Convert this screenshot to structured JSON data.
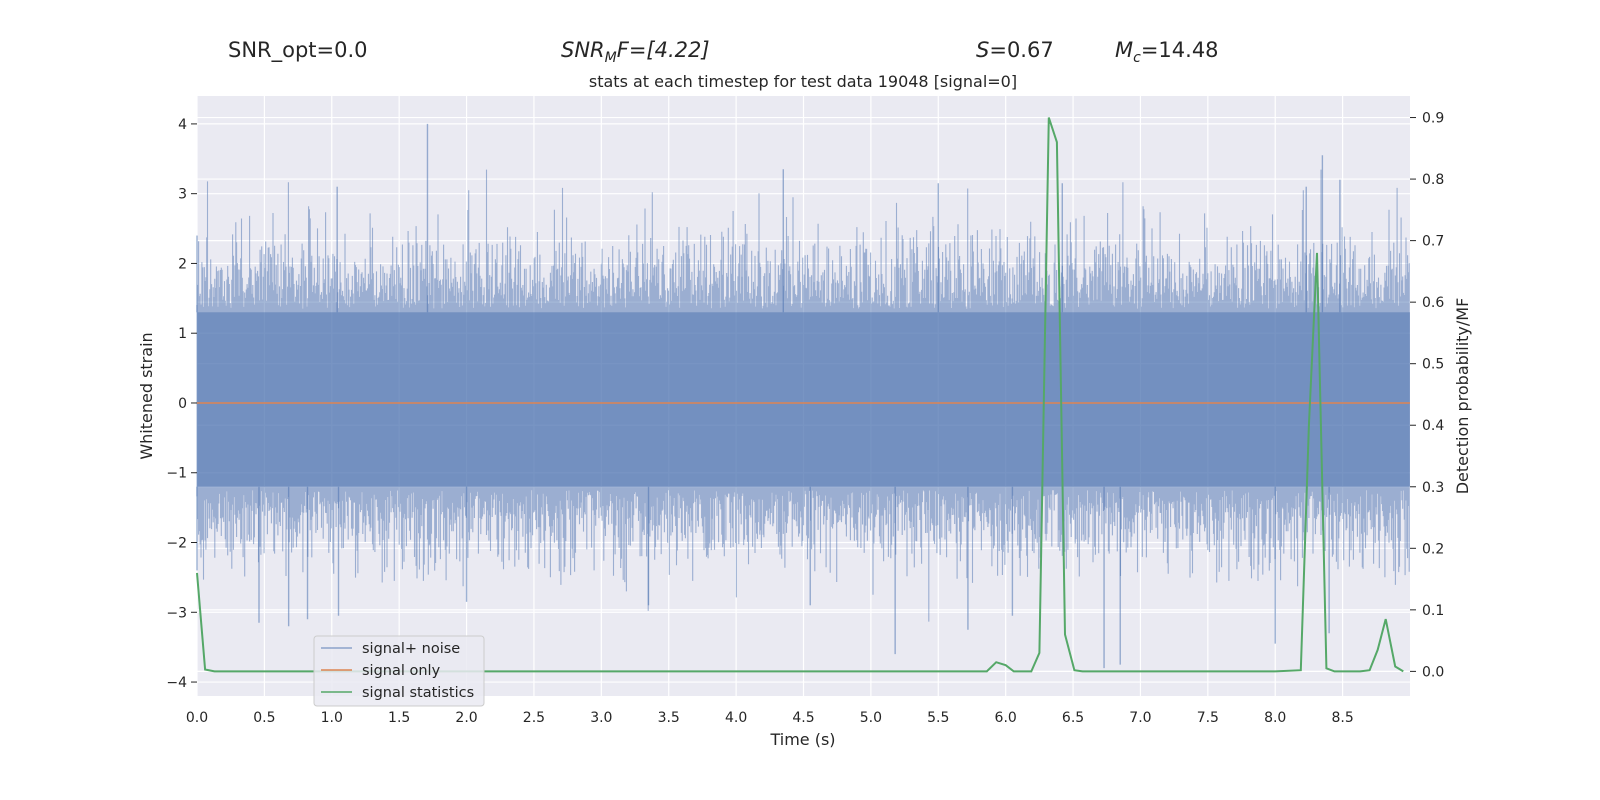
{
  "header": {
    "snr_opt": "SNR_opt=0.0",
    "snr_mf": {
      "symbol": "SNR",
      "sub": "M",
      "rest": "F=[4.22]"
    },
    "s": {
      "symbol": "S",
      "rest": "=0.67"
    },
    "mc": {
      "symbol": "M",
      "sub": "c",
      "rest": "=14.48"
    }
  },
  "chart_data": {
    "type": "line",
    "title": "stats at each timestep for test data 19048 [signal=0]",
    "xlabel": "Time (s)",
    "ylabel": "Whitened strain",
    "ylabel_right": "Detection probability/MF",
    "xlim": [
      0.0,
      9.0
    ],
    "ylim": [
      -4.2,
      4.4
    ],
    "ylim_right": [
      -0.04,
      0.935
    ],
    "xticks": [
      "0.0",
      "0.5",
      "1.0",
      "1.5",
      "2.0",
      "2.5",
      "3.0",
      "3.5",
      "4.0",
      "4.5",
      "5.0",
      "5.5",
      "6.0",
      "6.5",
      "7.0",
      "7.5",
      "8.0",
      "8.5"
    ],
    "yticks": [
      "−4",
      "−3",
      "−2",
      "−1",
      "0",
      "1",
      "2",
      "3",
      "4"
    ],
    "yticks_right": [
      "0.0",
      "0.1",
      "0.2",
      "0.3",
      "0.4",
      "0.5",
      "0.6",
      "0.7",
      "0.8",
      "0.9"
    ],
    "grid": true,
    "legend_position": "lower-left",
    "background": "#eaeaf2",
    "colors": {
      "noise": "#4c72b0",
      "signal": "#dd8452",
      "stats": "#55a868"
    },
    "series": [
      {
        "name": "signal+ noise",
        "axis": "left",
        "color": "#4c72b0",
        "description_only": "dense noisy strain samples roughly within -3.8..4.0",
        "spikes": [
          [
            0.0,
            2.4
          ],
          [
            0.0,
            -2.4
          ],
          [
            0.46,
            -3.15
          ],
          [
            0.68,
            -3.2
          ],
          [
            0.82,
            -3.1
          ],
          [
            1.04,
            3.1
          ],
          [
            1.05,
            -3.05
          ],
          [
            1.71,
            4.0
          ],
          [
            2.0,
            -2.85
          ],
          [
            3.35,
            -2.9
          ],
          [
            4.35,
            3.35
          ],
          [
            4.55,
            -2.9
          ],
          [
            5.18,
            -3.6
          ],
          [
            5.5,
            3.15
          ],
          [
            5.72,
            -3.25
          ],
          [
            6.05,
            -3.05
          ],
          [
            6.42,
            3.15
          ],
          [
            6.73,
            -3.8
          ],
          [
            6.85,
            -3.75
          ],
          [
            8.0,
            -3.45
          ],
          [
            8.23,
            3.1
          ],
          [
            8.35,
            3.55
          ],
          [
            8.48,
            3.2
          ],
          [
            8.4,
            -3.3
          ]
        ]
      },
      {
        "name": "signal only",
        "axis": "left",
        "color": "#dd8452",
        "x": [
          0.0,
          9.0
        ],
        "y": [
          0.0,
          0.0
        ]
      },
      {
        "name": "signal statistics",
        "axis": "right",
        "color": "#55a868",
        "x": [
          0.0,
          0.06,
          0.13,
          0.5,
          1.0,
          2.0,
          3.0,
          4.0,
          5.0,
          5.86,
          5.93,
          6.0,
          6.06,
          6.19,
          6.25,
          6.32,
          6.38,
          6.44,
          6.51,
          6.57,
          7.0,
          8.0,
          8.19,
          8.25,
          8.31,
          8.38,
          8.44,
          8.51,
          8.63,
          8.7,
          8.76,
          8.82,
          8.89,
          8.95
        ],
        "y": [
          0.16,
          0.003,
          0.0,
          0.0,
          0.0,
          0.0,
          0.0,
          0.0,
          0.0,
          0.0,
          0.015,
          0.01,
          0.0,
          0.0,
          0.03,
          0.9,
          0.86,
          0.06,
          0.002,
          0.0,
          0.0,
          0.0,
          0.002,
          0.4,
          0.68,
          0.005,
          0.0,
          0.0,
          0.0,
          0.002,
          0.035,
          0.085,
          0.008,
          0.0
        ]
      }
    ]
  }
}
